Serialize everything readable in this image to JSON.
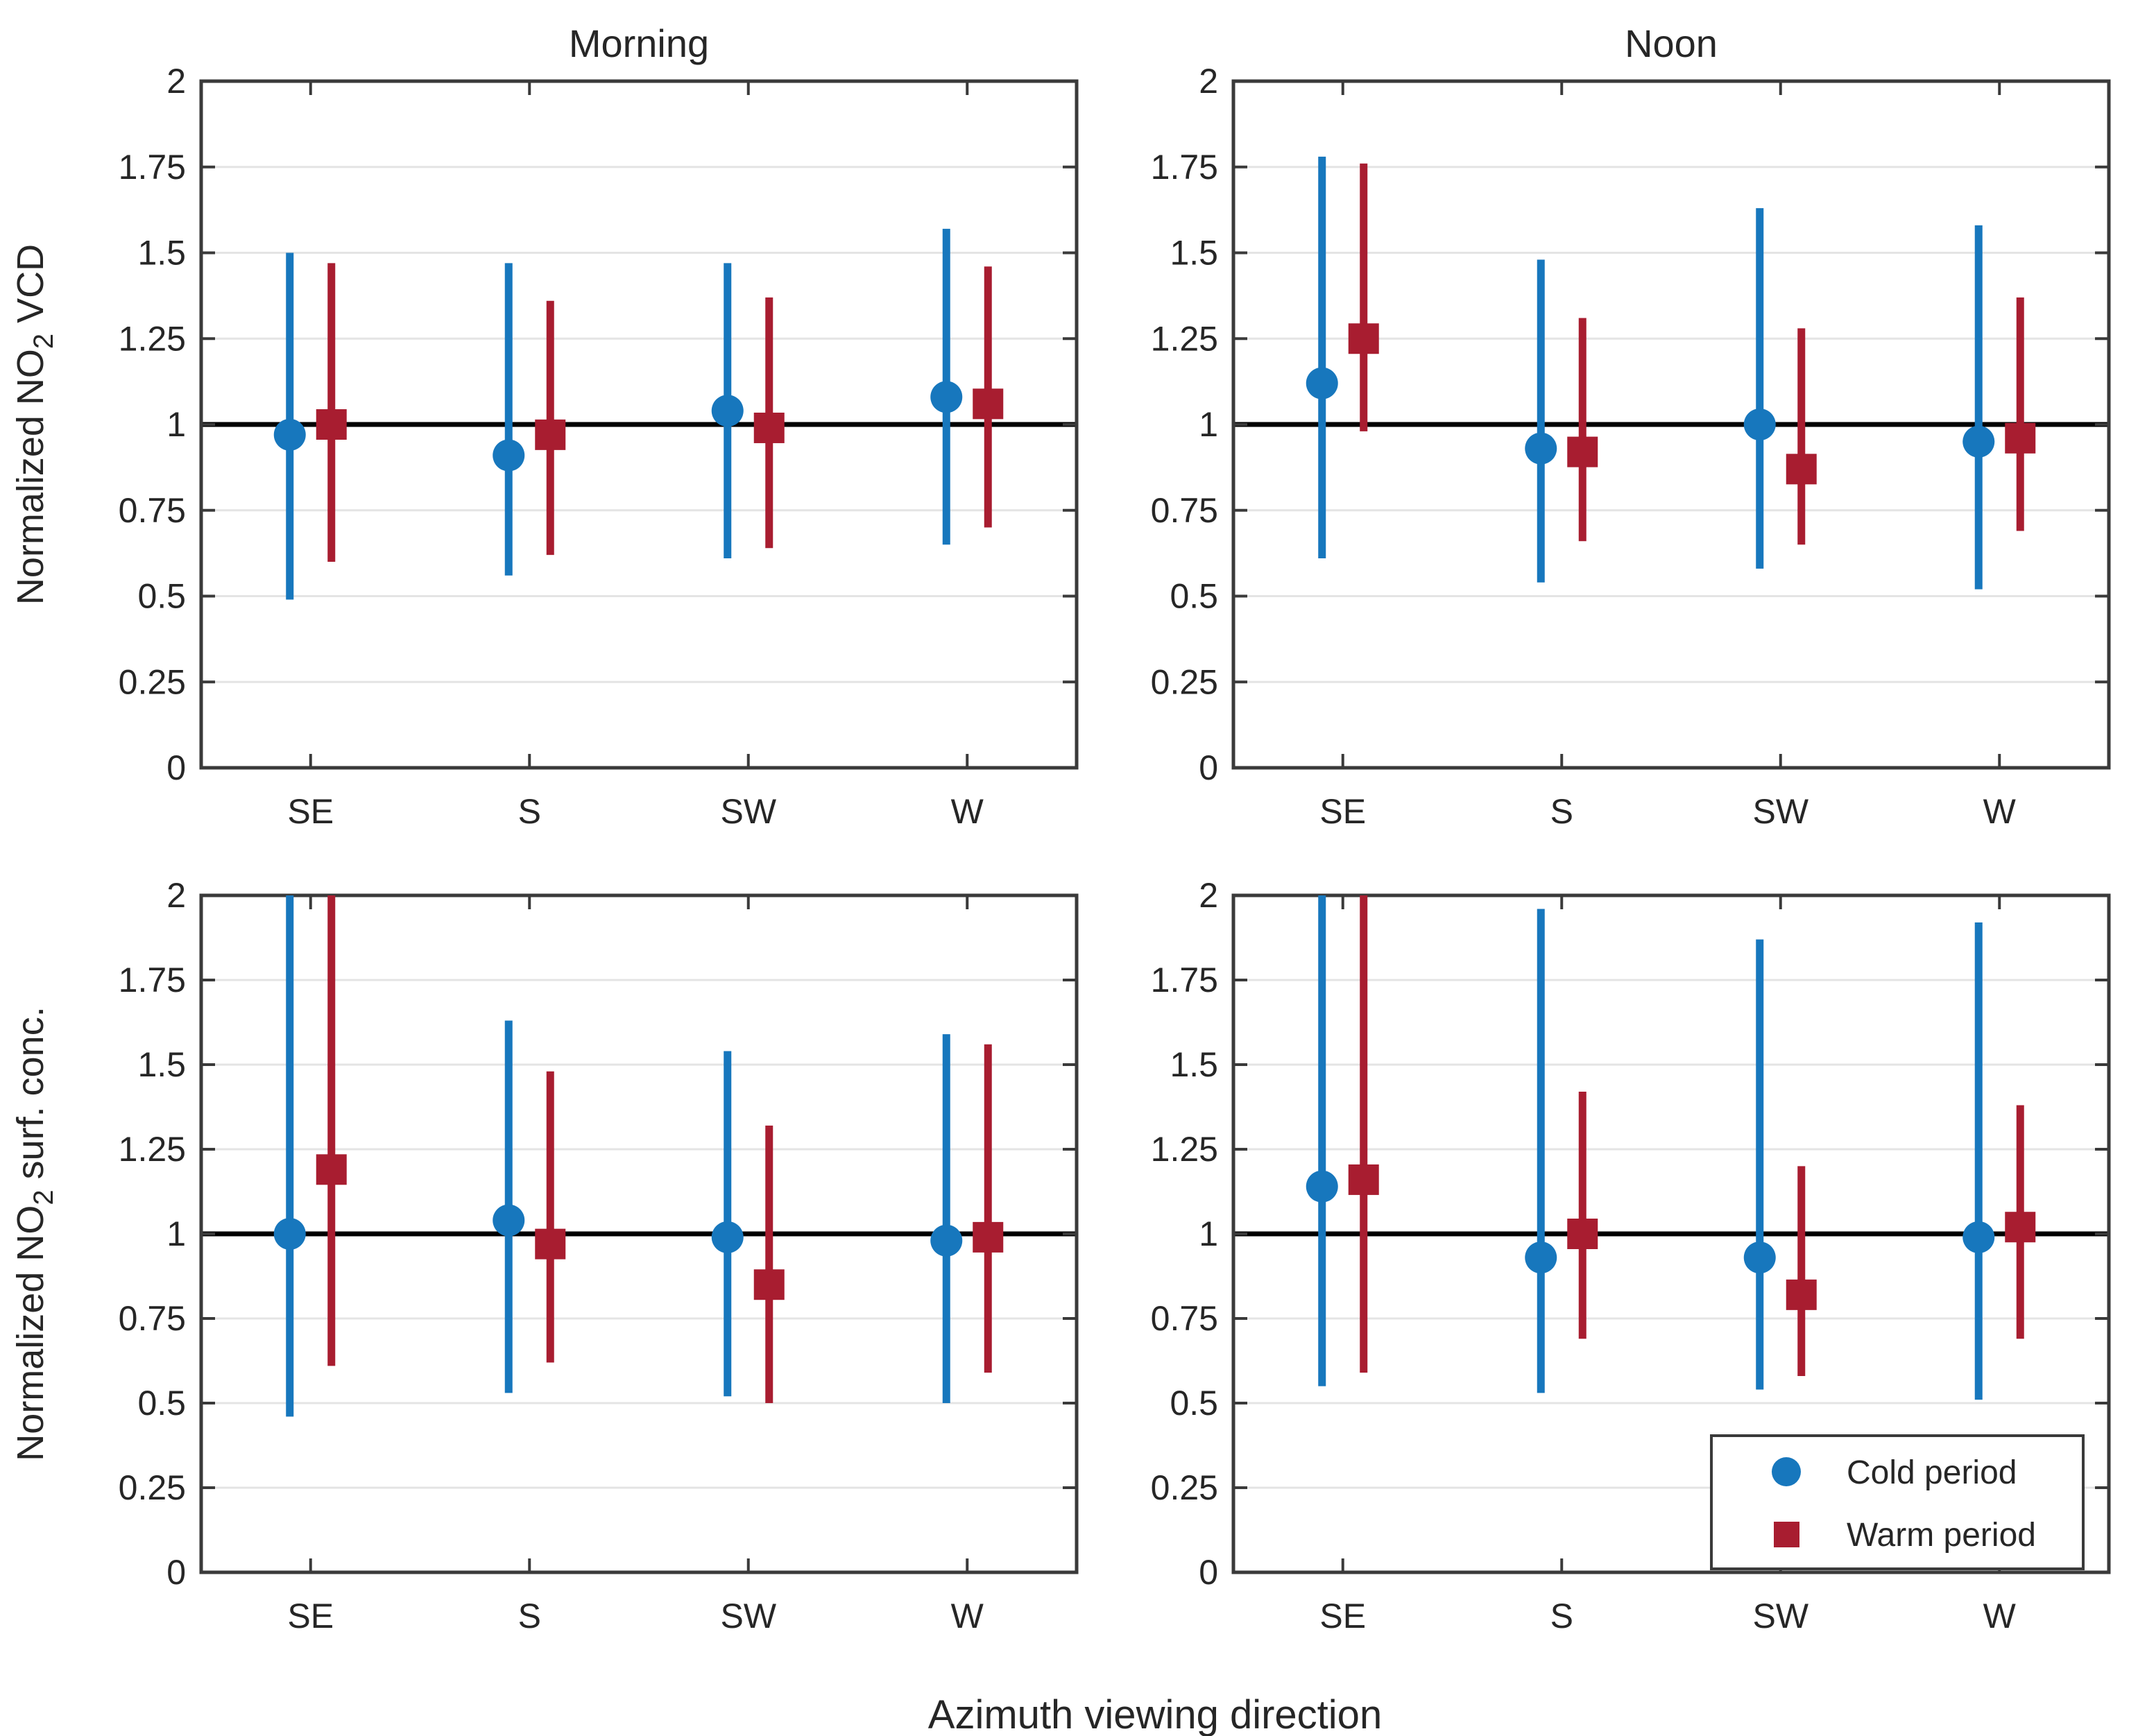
{
  "figure": {
    "background": "#ffffff",
    "titles": [
      "Morning",
      "Noon"
    ],
    "xlabel": "Azimuth viewing direction",
    "ylabel_top": {
      "text": "Normalized NO2 VCD",
      "parts": [
        "Normalized NO",
        "2",
        " VCD"
      ]
    },
    "ylabel_bottom": {
      "text": "Normalized NO2 surf. conc.",
      "parts": [
        "Normalized NO",
        "2",
        " surf. conc."
      ]
    }
  },
  "legend": {
    "items": [
      {
        "label": "Cold period",
        "marker": "circle",
        "color": "#1777bd"
      },
      {
        "label": "Warm period",
        "marker": "square",
        "color": "#a81d30"
      }
    ]
  },
  "colors": {
    "cold": "#1777bd",
    "warm": "#a81d30",
    "reference_line": "#000000",
    "axis_frame": "#3a3a3a",
    "gridline": "#e4e4e4",
    "text": "#262626"
  },
  "chart_data": {
    "type": "errorbar",
    "grid": "horizontal",
    "categories": [
      "SE",
      "S",
      "SW",
      "W"
    ],
    "xlabel": "Azimuth viewing direction",
    "ylim": [
      0,
      2
    ],
    "yticks": [
      0,
      0.25,
      0.5,
      0.75,
      1,
      1.25,
      1.5,
      1.75,
      2
    ],
    "ytick_labels": [
      "0",
      "0.25",
      "0.5",
      "0.75",
      "1",
      "1.25",
      "1.5",
      "1.75",
      "2"
    ],
    "reference_line_y": 1,
    "legend_position": "lower-right of noon-surf-conc panel",
    "subplots": [
      {
        "id": "morning-vcd",
        "column_title": "Morning",
        "row": 0,
        "col": 0,
        "ylabel": "Normalized NO2 VCD",
        "series": [
          {
            "name": "Cold period",
            "marker": "circle",
            "color": "#1777bd",
            "values": [
              0.97,
              0.91,
              1.04,
              1.08
            ],
            "err_lo": [
              0.49,
              0.56,
              0.61,
              0.65
            ],
            "err_hi": [
              1.5,
              1.47,
              1.47,
              1.57
            ]
          },
          {
            "name": "Warm period",
            "marker": "square",
            "color": "#a81d30",
            "values": [
              1.0,
              0.97,
              0.99,
              1.06
            ],
            "err_lo": [
              0.6,
              0.62,
              0.64,
              0.7
            ],
            "err_hi": [
              1.47,
              1.36,
              1.37,
              1.46
            ]
          }
        ]
      },
      {
        "id": "noon-vcd",
        "column_title": "Noon",
        "row": 0,
        "col": 1,
        "ylabel": "Normalized NO2 VCD",
        "series": [
          {
            "name": "Cold period",
            "marker": "circle",
            "color": "#1777bd",
            "values": [
              1.12,
              0.93,
              1.0,
              0.95
            ],
            "err_lo": [
              0.61,
              0.54,
              0.58,
              0.52
            ],
            "err_hi": [
              1.78,
              1.48,
              1.63,
              1.58
            ]
          },
          {
            "name": "Warm period",
            "marker": "square",
            "color": "#a81d30",
            "values": [
              1.25,
              0.92,
              0.87,
              0.96
            ],
            "err_lo": [
              0.98,
              0.66,
              0.65,
              0.69
            ],
            "err_hi": [
              1.76,
              1.31,
              1.28,
              1.37
            ]
          }
        ]
      },
      {
        "id": "morning-surf-conc",
        "column_title": "Morning",
        "row": 1,
        "col": 0,
        "ylabel": "Normalized NO2 surf. conc.",
        "series": [
          {
            "name": "Cold period",
            "marker": "circle",
            "color": "#1777bd",
            "values": [
              1.0,
              1.04,
              0.99,
              0.98
            ],
            "err_lo": [
              0.46,
              0.53,
              0.52,
              0.5
            ],
            "err_hi": [
              2.0,
              1.63,
              1.54,
              1.59
            ],
            "err_hi_clipped": [
              true,
              false,
              false,
              false
            ]
          },
          {
            "name": "Warm period",
            "marker": "square",
            "color": "#a81d30",
            "values": [
              1.19,
              0.97,
              0.85,
              0.99
            ],
            "err_lo": [
              0.61,
              0.62,
              0.5,
              0.59
            ],
            "err_hi": [
              2.0,
              1.48,
              1.32,
              1.56
            ],
            "err_hi_clipped": [
              true,
              false,
              false,
              false
            ]
          }
        ]
      },
      {
        "id": "noon-surf-conc",
        "column_title": "Noon",
        "row": 1,
        "col": 1,
        "ylabel": "Normalized NO2 surf. conc.",
        "series": [
          {
            "name": "Cold period",
            "marker": "circle",
            "color": "#1777bd",
            "values": [
              1.14,
              0.93,
              0.93,
              0.99
            ],
            "err_lo": [
              0.55,
              0.53,
              0.54,
              0.51
            ],
            "err_hi": [
              2.0,
              1.96,
              1.87,
              1.92
            ],
            "err_hi_clipped": [
              true,
              false,
              false,
              false
            ]
          },
          {
            "name": "Warm period",
            "marker": "square",
            "color": "#a81d30",
            "values": [
              1.16,
              1.0,
              0.82,
              1.02
            ],
            "err_lo": [
              0.59,
              0.69,
              0.58,
              0.69
            ],
            "err_hi": [
              2.0,
              1.42,
              1.2,
              1.38
            ],
            "err_hi_clipped": [
              true,
              false,
              false,
              false
            ]
          }
        ]
      }
    ]
  }
}
